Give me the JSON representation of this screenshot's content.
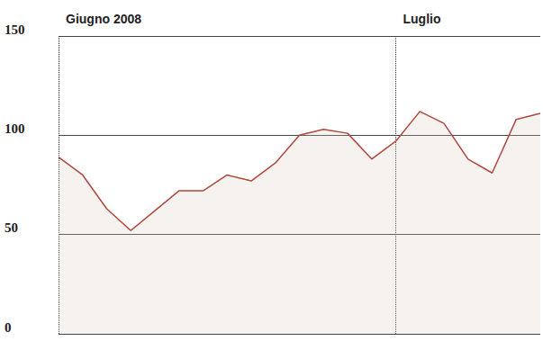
{
  "chart_data": {
    "type": "line",
    "categories": [
      "Giugno 2008",
      null,
      null,
      null,
      null,
      null,
      null,
      null,
      null,
      null,
      null,
      null,
      null,
      null,
      "Luglio",
      null,
      null,
      null,
      null,
      null,
      null
    ],
    "values": [
      89,
      80,
      63,
      52,
      62,
      72,
      72,
      80,
      77,
      86,
      100,
      103,
      101,
      88,
      97,
      112,
      106,
      88,
      81,
      108,
      111
    ],
    "color": "#b0483e",
    "ylim": [
      0,
      150
    ],
    "yticks": [
      0,
      50,
      100,
      150
    ],
    "grid": true
  }
}
